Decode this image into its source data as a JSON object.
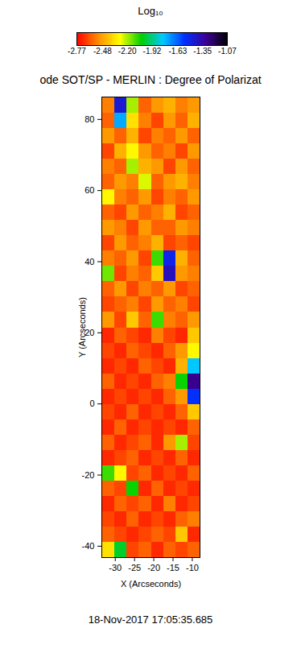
{
  "chart_data": {
    "type": "heatmap",
    "title": "ode SOT/SP - MERLIN : Degree of Polarizat",
    "x_label": "X (Arcseconds)",
    "y_label": "Y (Arcseconds)",
    "caption": "18-Nov-2017 17:05:35.685",
    "xlim": [
      -33.5,
      -8
    ],
    "ylim": [
      -43.2,
      86.3
    ],
    "xticks": [
      -30,
      -25,
      -20,
      -15,
      -10
    ],
    "yticks": [
      -40,
      -20,
      0,
      20,
      40,
      60,
      80
    ],
    "cells": [
      [
        -2.55,
        -1.45,
        -2.2,
        -2.6,
        -2.5,
        -2.45,
        -2.55,
        -2.5
      ],
      [
        -2.6,
        -1.75,
        -2.35,
        -2.55,
        -2.65,
        -2.5,
        -2.6,
        -2.45
      ],
      [
        -2.5,
        -2.6,
        -2.45,
        -2.65,
        -2.55,
        -2.6,
        -2.5,
        -2.6
      ],
      [
        -2.65,
        -2.45,
        -2.3,
        -2.5,
        -2.6,
        -2.55,
        -2.65,
        -2.5
      ],
      [
        -2.55,
        -2.6,
        -2.2,
        -2.45,
        -2.5,
        -2.65,
        -2.5,
        -2.6
      ],
      [
        -2.6,
        -2.5,
        -2.55,
        -2.25,
        -2.6,
        -2.5,
        -2.45,
        -2.55
      ],
      [
        -2.3,
        -2.55,
        -2.6,
        -2.5,
        -2.65,
        -2.55,
        -2.6,
        -2.5
      ],
      [
        -2.6,
        -2.65,
        -2.5,
        -2.6,
        -2.55,
        -2.45,
        -2.65,
        -2.6
      ],
      [
        -2.5,
        -2.55,
        -2.65,
        -2.5,
        -2.6,
        -2.6,
        -2.5,
        -2.55
      ],
      [
        -2.65,
        -2.5,
        -2.6,
        -2.55,
        -2.45,
        -2.65,
        -2.6,
        -2.65
      ],
      [
        -2.55,
        -2.6,
        -2.5,
        -2.65,
        -2.1,
        -1.5,
        -2.45,
        -2.6
      ],
      [
        -2.15,
        -2.65,
        -2.55,
        -2.6,
        -2.4,
        -1.4,
        -2.5,
        -2.55
      ],
      [
        -2.6,
        -2.5,
        -2.65,
        -2.55,
        -2.6,
        -2.5,
        -2.65,
        -2.6
      ],
      [
        -2.65,
        -2.6,
        -2.55,
        -2.65,
        -2.5,
        -2.6,
        -2.55,
        -2.65
      ],
      [
        -2.5,
        -2.65,
        -2.4,
        -2.6,
        -2.1,
        -2.55,
        -2.6,
        -2.5
      ],
      [
        -2.7,
        -2.6,
        -2.65,
        -2.7,
        -2.55,
        -2.65,
        -2.7,
        -2.4
      ],
      [
        -2.65,
        -2.7,
        -2.6,
        -2.65,
        -2.7,
        -2.6,
        -2.5,
        -2.3
      ],
      [
        -2.7,
        -2.65,
        -2.7,
        -2.6,
        -2.65,
        -2.7,
        -2.45,
        -1.8
      ],
      [
        -2.6,
        -2.7,
        -2.65,
        -2.7,
        -2.6,
        -2.55,
        -2.05,
        -1.3
      ],
      [
        -2.7,
        -2.65,
        -2.7,
        -2.65,
        -2.7,
        -2.6,
        -2.5,
        -1.55
      ],
      [
        -2.65,
        -2.7,
        -2.6,
        -2.7,
        -2.65,
        -2.7,
        -2.6,
        -2.4
      ],
      [
        -2.7,
        -2.6,
        -2.7,
        -2.65,
        -2.7,
        -2.65,
        -2.7,
        -2.6
      ],
      [
        -2.6,
        -2.7,
        -2.65,
        -2.6,
        -2.7,
        -2.5,
        -2.2,
        -2.65
      ],
      [
        -2.7,
        -2.65,
        -2.6,
        -2.7,
        -2.65,
        -2.7,
        -2.6,
        -2.7
      ],
      [
        -2.1,
        -2.3,
        -2.65,
        -2.6,
        -2.7,
        -2.65,
        -2.7,
        -2.6
      ],
      [
        -2.6,
        -2.65,
        -2.05,
        -2.7,
        -2.6,
        -2.7,
        -2.65,
        -2.7
      ],
      [
        -2.7,
        -2.6,
        -2.65,
        -2.6,
        -2.7,
        -2.55,
        -2.7,
        -2.65
      ],
      [
        -2.65,
        -2.7,
        -2.6,
        -2.7,
        -2.65,
        -2.7,
        -2.6,
        -2.55
      ],
      [
        -2.6,
        -2.65,
        -2.7,
        -2.65,
        -2.6,
        -2.65,
        -2.4,
        -2.7
      ],
      [
        -2.35,
        -2.0,
        -2.65,
        -2.6,
        -2.7,
        -2.6,
        -2.65,
        -2.6
      ]
    ],
    "colorbar": {
      "title": "Log₁₀",
      "range": [
        -2.77,
        -1.07
      ],
      "ticks": [
        -2.77,
        -2.48,
        {
          "value": -2.2,
          "label": "-2.20"
        },
        -1.92,
        -1.63,
        -1.35,
        -1.07
      ]
    }
  }
}
